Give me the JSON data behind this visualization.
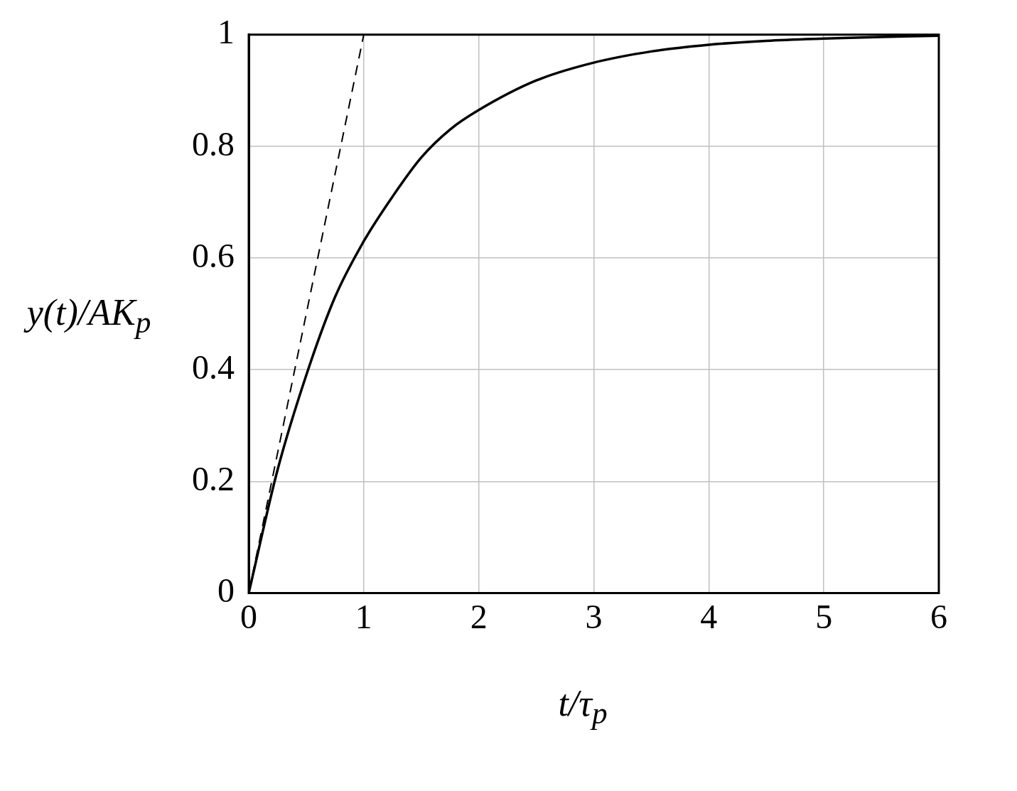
{
  "chart_data": {
    "type": "line",
    "xlabel": "t/τ$_{p}$",
    "ylabel": "y(t)/AK$_{p}$",
    "xlim": [
      0,
      6
    ],
    "ylim": [
      0,
      1
    ],
    "xticks": [
      0,
      1,
      2,
      3,
      4,
      5,
      6
    ],
    "yticks": [
      0,
      0.2,
      0.4,
      0.6,
      0.8,
      1
    ],
    "grid": true,
    "legend": false,
    "marker": "none",
    "series": [
      {
        "color": "#000000",
        "line_style": "solid",
        "x": [
          0,
          0.25,
          0.5,
          0.75,
          1,
          1.25,
          1.5,
          1.75,
          2,
          2.5,
          3,
          3.5,
          4,
          4.5,
          5,
          5.5,
          6
        ],
        "values": [
          0,
          0.22,
          0.39,
          0.53,
          0.63,
          0.71,
          0.78,
          0.83,
          0.865,
          0.918,
          0.95,
          0.97,
          0.982,
          0.989,
          0.993,
          0.996,
          0.998
        ]
      },
      {
        "color": "#000000",
        "line_style": "dashed",
        "x": [
          0,
          1
        ],
        "values": [
          0,
          1
        ]
      }
    ]
  }
}
